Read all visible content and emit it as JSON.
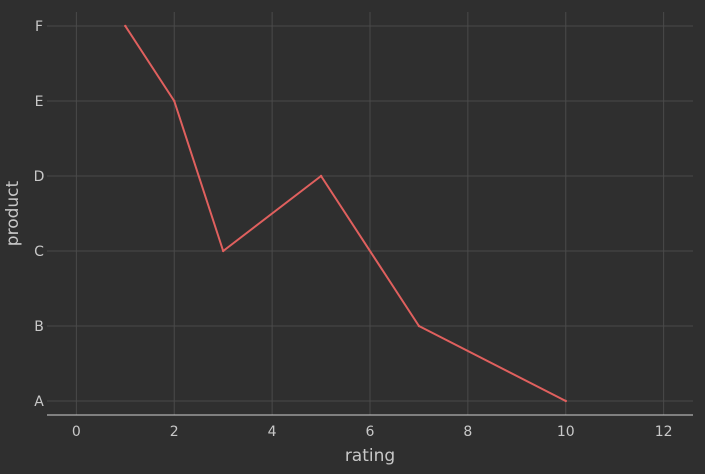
{
  "colors": {
    "background": "#2f2f2f",
    "grid": "#4a4a4a",
    "axis": "#d0d0d0",
    "text": "#c8c8c8",
    "series": "#e0605e"
  },
  "chart_data": {
    "type": "line",
    "title": "",
    "xlabel": "rating",
    "ylabel": "product",
    "xlim": [
      -0.6,
      12.6
    ],
    "x_ticks": [
      0,
      2,
      4,
      6,
      8,
      10,
      12
    ],
    "y_categories": [
      "A",
      "B",
      "C",
      "D",
      "E",
      "F"
    ],
    "grid": true,
    "legend": "none",
    "series": [
      {
        "points": [
          {
            "x": 1,
            "y": "F"
          },
          {
            "x": 2,
            "y": "E"
          },
          {
            "x": 3,
            "y": "C"
          },
          {
            "x": 5,
            "y": "D"
          },
          {
            "x": 7,
            "y": "B"
          },
          {
            "x": 10,
            "y": "A"
          }
        ]
      }
    ]
  }
}
